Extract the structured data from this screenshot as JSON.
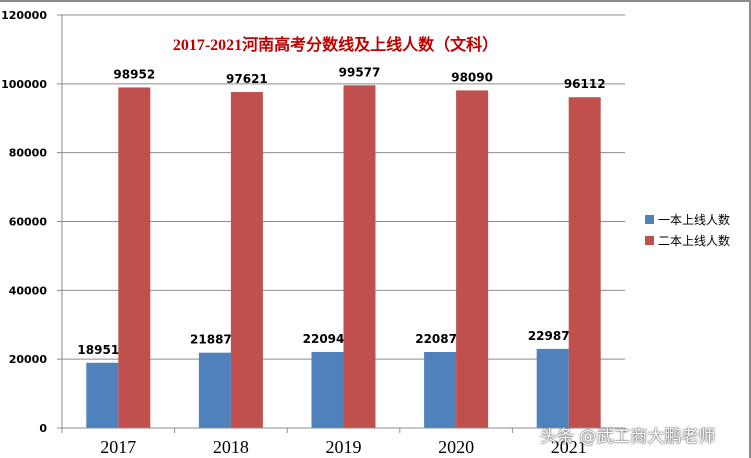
{
  "chart_data": {
    "type": "bar",
    "title": "2017-2021河南高考分数线及上线人数（文科）",
    "categories": [
      "2017",
      "2018",
      "2019",
      "2020",
      "2021"
    ],
    "series": [
      {
        "name": "一本上线人数",
        "color": "#4f81bd",
        "values": [
          18951,
          21887,
          22094,
          22087,
          22987
        ]
      },
      {
        "name": "二本上线人数",
        "color": "#c0504d",
        "values": [
          98952,
          97621,
          99577,
          98090,
          96112
        ]
      }
    ],
    "xlabel": "",
    "ylabel": "",
    "ylim": [
      0,
      120000
    ],
    "yticks": [
      0,
      20000,
      40000,
      60000,
      80000,
      100000,
      120000
    ],
    "grid": true,
    "legend_position": "right"
  },
  "watermark": "头条 @武工商大鹏老师"
}
